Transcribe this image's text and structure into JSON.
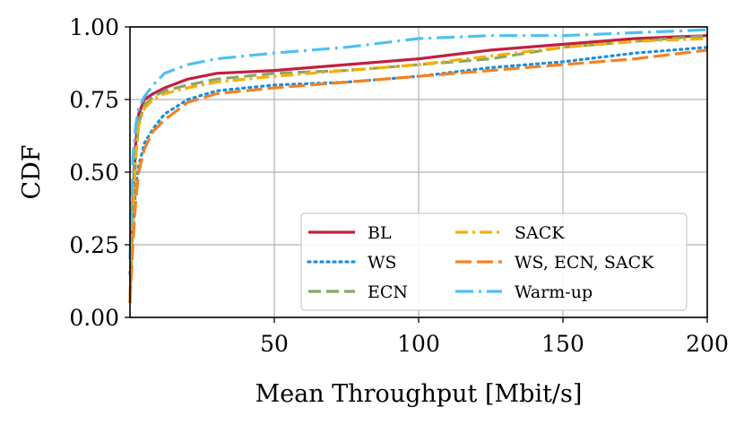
{
  "chart_data": {
    "type": "line",
    "xlabel": "Mean Throughput [Mbit/s]",
    "ylabel": "CDF",
    "xlim": [
      0,
      200
    ],
    "ylim": [
      0,
      1
    ],
    "x_ticks": [
      "50",
      "100",
      "150",
      "200"
    ],
    "y_ticks": [
      "0.00",
      "0.25",
      "0.50",
      "0.75",
      "1.00"
    ],
    "grid": true,
    "legend_position": "lower-right",
    "series": [
      {
        "name": "BL",
        "color": "#c1203f",
        "dash": "solid",
        "points": [
          [
            0,
            0.05
          ],
          [
            1,
            0.4
          ],
          [
            2,
            0.6
          ],
          [
            3,
            0.7
          ],
          [
            5,
            0.75
          ],
          [
            8,
            0.77
          ],
          [
            12,
            0.79
          ],
          [
            20,
            0.82
          ],
          [
            30,
            0.84
          ],
          [
            50,
            0.85
          ],
          [
            75,
            0.87
          ],
          [
            100,
            0.89
          ],
          [
            125,
            0.92
          ],
          [
            150,
            0.94
          ],
          [
            175,
            0.96
          ],
          [
            200,
            0.97
          ]
        ]
      },
      {
        "name": "WS",
        "color": "#1a8fe0",
        "dash": "dotted",
        "points": [
          [
            0,
            0.15
          ],
          [
            1,
            0.3
          ],
          [
            2,
            0.45
          ],
          [
            3,
            0.52
          ],
          [
            5,
            0.6
          ],
          [
            8,
            0.65
          ],
          [
            12,
            0.7
          ],
          [
            20,
            0.75
          ],
          [
            30,
            0.78
          ],
          [
            50,
            0.8
          ],
          [
            75,
            0.81
          ],
          [
            100,
            0.83
          ],
          [
            125,
            0.86
          ],
          [
            150,
            0.88
          ],
          [
            175,
            0.91
          ],
          [
            200,
            0.93
          ]
        ]
      },
      {
        "name": "ECN",
        "color": "#8aa56b",
        "dash": "dashed",
        "points": [
          [
            0,
            0.05
          ],
          [
            1,
            0.35
          ],
          [
            2,
            0.55
          ],
          [
            3,
            0.67
          ],
          [
            5,
            0.73
          ],
          [
            8,
            0.76
          ],
          [
            12,
            0.78
          ],
          [
            20,
            0.8
          ],
          [
            30,
            0.82
          ],
          [
            50,
            0.84
          ],
          [
            75,
            0.85
          ],
          [
            100,
            0.87
          ],
          [
            125,
            0.89
          ],
          [
            150,
            0.93
          ],
          [
            175,
            0.95
          ],
          [
            200,
            0.97
          ]
        ]
      },
      {
        "name": "SACK",
        "color": "#f4b000",
        "dash": "dashdot",
        "points": [
          [
            0,
            0.05
          ],
          [
            1,
            0.35
          ],
          [
            2,
            0.55
          ],
          [
            3,
            0.66
          ],
          [
            5,
            0.72
          ],
          [
            8,
            0.75
          ],
          [
            12,
            0.77
          ],
          [
            20,
            0.79
          ],
          [
            30,
            0.81
          ],
          [
            50,
            0.83
          ],
          [
            75,
            0.85
          ],
          [
            100,
            0.87
          ],
          [
            125,
            0.9
          ],
          [
            150,
            0.93
          ],
          [
            175,
            0.95
          ],
          [
            200,
            0.96
          ]
        ]
      },
      {
        "name": "WS, ECN, SACK",
        "color": "#f58220",
        "dash": "longdash",
        "points": [
          [
            0,
            0.05
          ],
          [
            1,
            0.25
          ],
          [
            2,
            0.4
          ],
          [
            3,
            0.5
          ],
          [
            5,
            0.58
          ],
          [
            8,
            0.64
          ],
          [
            12,
            0.68
          ],
          [
            20,
            0.74
          ],
          [
            30,
            0.77
          ],
          [
            50,
            0.79
          ],
          [
            75,
            0.81
          ],
          [
            100,
            0.83
          ],
          [
            125,
            0.85
          ],
          [
            150,
            0.87
          ],
          [
            175,
            0.89
          ],
          [
            200,
            0.92
          ]
        ]
      },
      {
        "name": "Warm-up",
        "color": "#4ec0f0",
        "dash": "dashdot-long",
        "points": [
          [
            0,
            0.2
          ],
          [
            1,
            0.55
          ],
          [
            2,
            0.66
          ],
          [
            3,
            0.72
          ],
          [
            5,
            0.76
          ],
          [
            8,
            0.8
          ],
          [
            12,
            0.84
          ],
          [
            20,
            0.87
          ],
          [
            30,
            0.89
          ],
          [
            50,
            0.91
          ],
          [
            75,
            0.93
          ],
          [
            100,
            0.96
          ],
          [
            125,
            0.97
          ],
          [
            150,
            0.97
          ],
          [
            175,
            0.98
          ],
          [
            200,
            0.99
          ]
        ]
      }
    ]
  }
}
